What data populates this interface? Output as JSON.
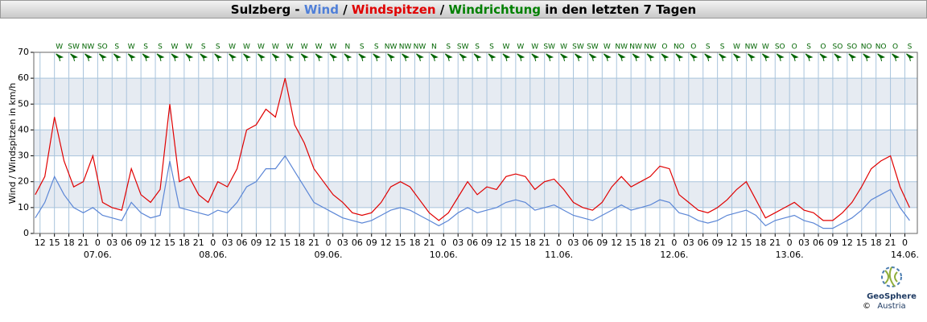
{
  "chart_data": {
    "type": "line",
    "title_parts": [
      {
        "text": "Sulzberg - ",
        "color": "#000000"
      },
      {
        "text": "Wind",
        "color": "#4f7fd8"
      },
      {
        "text": " / ",
        "color": "#000000"
      },
      {
        "text": "Windspitzen",
        "color": "#e00000"
      },
      {
        "text": " / ",
        "color": "#000000"
      },
      {
        "text": "Windrichtung",
        "color": "#008000"
      },
      {
        "text": " in den letzten 7 Tagen",
        "color": "#000000"
      }
    ],
    "ylabel": "Wind / Windspitzen in km/h",
    "ylim": [
      0,
      70
    ],
    "yticks": [
      0,
      10,
      20,
      30,
      40,
      50,
      60,
      70
    ],
    "bands": [
      [
        10,
        20
      ],
      [
        30,
        40
      ],
      [
        50,
        60
      ]
    ],
    "xlim": [
      10.7,
      194.6
    ],
    "xticks": [
      {
        "value": 12,
        "label": "12"
      },
      {
        "value": 15,
        "label": "15"
      },
      {
        "value": 18,
        "label": "18"
      },
      {
        "value": 21,
        "label": "21"
      },
      {
        "value": 24,
        "label": "0"
      },
      {
        "value": 27,
        "label": "03"
      },
      {
        "value": 30,
        "label": "06"
      },
      {
        "value": 33,
        "label": "09"
      },
      {
        "value": 36,
        "label": "12"
      },
      {
        "value": 39,
        "label": "15"
      },
      {
        "value": 42,
        "label": "18"
      },
      {
        "value": 45,
        "label": "21"
      },
      {
        "value": 48,
        "label": "0"
      },
      {
        "value": 51,
        "label": "03"
      },
      {
        "value": 54,
        "label": "06"
      },
      {
        "value": 57,
        "label": "09"
      },
      {
        "value": 60,
        "label": "12"
      },
      {
        "value": 63,
        "label": "15"
      },
      {
        "value": 66,
        "label": "18"
      },
      {
        "value": 69,
        "label": "21"
      },
      {
        "value": 72,
        "label": "0"
      },
      {
        "value": 75,
        "label": "03"
      },
      {
        "value": 78,
        "label": "06"
      },
      {
        "value": 81,
        "label": "09"
      },
      {
        "value": 84,
        "label": "12"
      },
      {
        "value": 87,
        "label": "15"
      },
      {
        "value": 90,
        "label": "18"
      },
      {
        "value": 93,
        "label": "21"
      },
      {
        "value": 96,
        "label": "0"
      },
      {
        "value": 99,
        "label": "03"
      },
      {
        "value": 102,
        "label": "06"
      },
      {
        "value": 105,
        "label": "09"
      },
      {
        "value": 108,
        "label": "12"
      },
      {
        "value": 111,
        "label": "15"
      },
      {
        "value": 114,
        "label": "18"
      },
      {
        "value": 117,
        "label": "21"
      },
      {
        "value": 120,
        "label": "0"
      },
      {
        "value": 123,
        "label": "03"
      },
      {
        "value": 126,
        "label": "06"
      },
      {
        "value": 129,
        "label": "09"
      },
      {
        "value": 132,
        "label": "12"
      },
      {
        "value": 135,
        "label": "15"
      },
      {
        "value": 138,
        "label": "18"
      },
      {
        "value": 141,
        "label": "21"
      },
      {
        "value": 144,
        "label": "0"
      },
      {
        "value": 147,
        "label": "03"
      },
      {
        "value": 150,
        "label": "06"
      },
      {
        "value": 153,
        "label": "09"
      },
      {
        "value": 156,
        "label": "12"
      },
      {
        "value": 159,
        "label": "15"
      },
      {
        "value": 162,
        "label": "18"
      },
      {
        "value": 165,
        "label": "21"
      },
      {
        "value": 168,
        "label": "0"
      },
      {
        "value": 171,
        "label": "03"
      },
      {
        "value": 174,
        "label": "06"
      },
      {
        "value": 177,
        "label": "09"
      },
      {
        "value": 180,
        "label": "12"
      },
      {
        "value": 183,
        "label": "15"
      },
      {
        "value": 186,
        "label": "18"
      },
      {
        "value": 189,
        "label": "21"
      },
      {
        "value": 192,
        "label": "0"
      }
    ],
    "date_ticks": [
      {
        "value": 24,
        "label": "07.06."
      },
      {
        "value": 48,
        "label": "08.06."
      },
      {
        "value": 72,
        "label": "09.06."
      },
      {
        "value": 96,
        "label": "10.06."
      },
      {
        "value": 120,
        "label": "11.06."
      },
      {
        "value": 144,
        "label": "12.06."
      },
      {
        "value": 168,
        "label": "13.06."
      },
      {
        "value": 192,
        "label": "14.06."
      }
    ],
    "grid": true,
    "x": [
      11,
      13,
      15,
      17,
      19,
      21,
      23,
      25,
      27,
      29,
      31,
      33,
      35,
      37,
      39,
      41,
      43,
      45,
      47,
      49,
      51,
      53,
      55,
      57,
      59,
      61,
      63,
      65,
      67,
      69,
      71,
      73,
      75,
      77,
      79,
      81,
      83,
      85,
      87,
      89,
      91,
      93,
      95,
      97,
      99,
      101,
      103,
      105,
      107,
      109,
      111,
      113,
      115,
      117,
      119,
      121,
      123,
      125,
      127,
      129,
      131,
      133,
      135,
      137,
      139,
      141,
      143,
      145,
      147,
      149,
      151,
      153,
      155,
      157,
      159,
      161,
      163,
      165,
      167,
      169,
      171,
      173,
      175,
      177,
      179,
      181,
      183,
      185,
      187,
      189,
      191,
      193
    ],
    "series": [
      {
        "name": "Windspitzen",
        "color": "#e00000",
        "values": [
          15,
          22,
          45,
          28,
          18,
          20,
          30,
          12,
          10,
          9,
          25,
          15,
          12,
          17,
          50,
          20,
          22,
          15,
          12,
          20,
          18,
          25,
          40,
          42,
          48,
          45,
          60,
          42,
          35,
          25,
          20,
          15,
          12,
          8,
          7,
          8,
          12,
          18,
          20,
          18,
          13,
          8,
          5,
          8,
          14,
          20,
          15,
          18,
          17,
          22,
          23,
          22,
          17,
          20,
          21,
          17,
          12,
          10,
          9,
          12,
          18,
          22,
          18,
          20,
          22,
          26,
          25,
          15,
          12,
          9,
          8,
          10,
          13,
          17,
          20,
          13,
          6,
          8,
          10,
          12,
          9,
          8,
          5,
          5,
          8,
          12,
          18,
          25,
          28,
          30,
          18,
          10
        ]
      },
      {
        "name": "Wind",
        "color": "#5b86d6",
        "values": [
          6,
          12,
          22,
          15,
          10,
          8,
          10,
          7,
          6,
          5,
          12,
          8,
          6,
          7,
          28,
          10,
          9,
          8,
          7,
          9,
          8,
          12,
          18,
          20,
          25,
          25,
          30,
          24,
          18,
          12,
          10,
          8,
          6,
          5,
          4,
          5,
          7,
          9,
          10,
          9,
          7,
          5,
          3,
          5,
          8,
          10,
          8,
          9,
          10,
          12,
          13,
          12,
          9,
          10,
          11,
          9,
          7,
          6,
          5,
          7,
          9,
          11,
          9,
          10,
          11,
          13,
          12,
          8,
          7,
          5,
          4,
          5,
          7,
          8,
          9,
          7,
          3,
          5,
          6,
          7,
          5,
          4,
          2,
          2,
          4,
          6,
          9,
          13,
          15,
          17,
          10,
          5
        ]
      }
    ],
    "directions": {
      "x": [
        16,
        19,
        22,
        25,
        28,
        31,
        34,
        37,
        40,
        43,
        46,
        49,
        52,
        55,
        58,
        61,
        64,
        67,
        70,
        73,
        76,
        79,
        82,
        85,
        88,
        91,
        94,
        97,
        100,
        103,
        106,
        109,
        112,
        115,
        118,
        121,
        124,
        127,
        130,
        133,
        136,
        139,
        142,
        145,
        148,
        151,
        154,
        157,
        160,
        163,
        166,
        169,
        172,
        175,
        178,
        181,
        184,
        187,
        190,
        193
      ],
      "labels": [
        "W",
        "SW",
        "NW",
        "SO",
        "S",
        "W",
        "S",
        "S",
        "W",
        "W",
        "S",
        "S",
        "W",
        "W",
        "W",
        "W",
        "W",
        "W",
        "W",
        "W",
        "N",
        "S",
        "S",
        "NW",
        "NW",
        "NW",
        "N",
        "S",
        "SW",
        "S",
        "S",
        "W",
        "W",
        "W",
        "SW",
        "W",
        "SW",
        "SW",
        "W",
        "NW",
        "NW",
        "NW",
        "O",
        "NO",
        "O",
        "S",
        "S",
        "W",
        "NW",
        "W",
        "SO",
        "O",
        "S",
        "O",
        "SO",
        "SO",
        "NO",
        "NO",
        "O",
        "S"
      ]
    },
    "logo": {
      "name": "GeoSphere",
      "sub": "Austria",
      "copyright": "©"
    }
  }
}
